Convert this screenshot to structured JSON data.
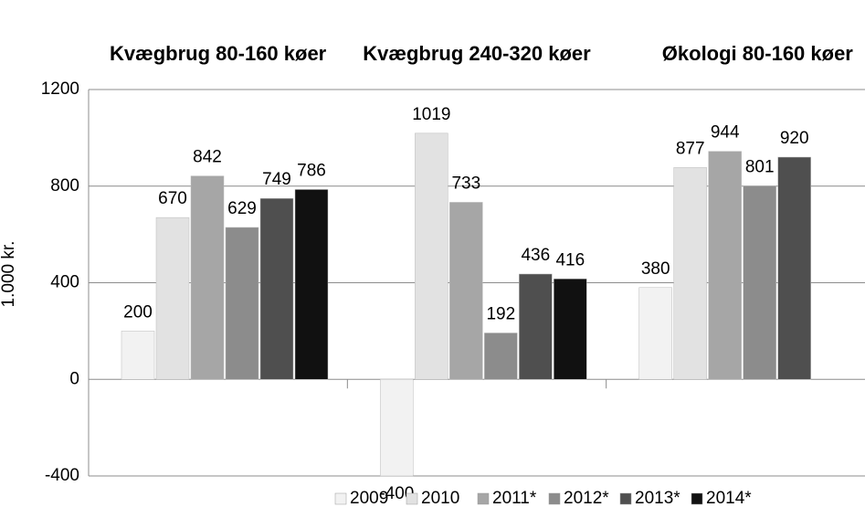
{
  "chart_data": {
    "type": "bar",
    "categories": [
      "Kvægbrug 80-160 køer",
      "Kvægbrug 240-320 køer",
      "Økologi 80-160 køer"
    ],
    "y_label": "1.000 kr.",
    "series": [
      {
        "name": "2009",
        "color": "#f2f2f2",
        "values": [
          200,
          -400,
          380
        ]
      },
      {
        "name": "2010",
        "color": "#e2e2e2",
        "values": [
          670,
          1019,
          877
        ]
      },
      {
        "name": "2011*",
        "color": "#a6a6a6",
        "values": [
          842,
          733,
          944
        ]
      },
      {
        "name": "2012*",
        "color": "#8c8c8c",
        "values": [
          629,
          192,
          801
        ]
      },
      {
        "name": "2013*",
        "color": "#4f4f4f",
        "values": [
          749,
          436,
          920
        ]
      },
      {
        "name": "2014*",
        "color": "#111111",
        "values": [
          786,
          416,
          null
        ]
      }
    ],
    "ylim": [
      -400,
      1200
    ],
    "yticks": [
      -400,
      0,
      400,
      800,
      1200
    ],
    "grid": true
  }
}
